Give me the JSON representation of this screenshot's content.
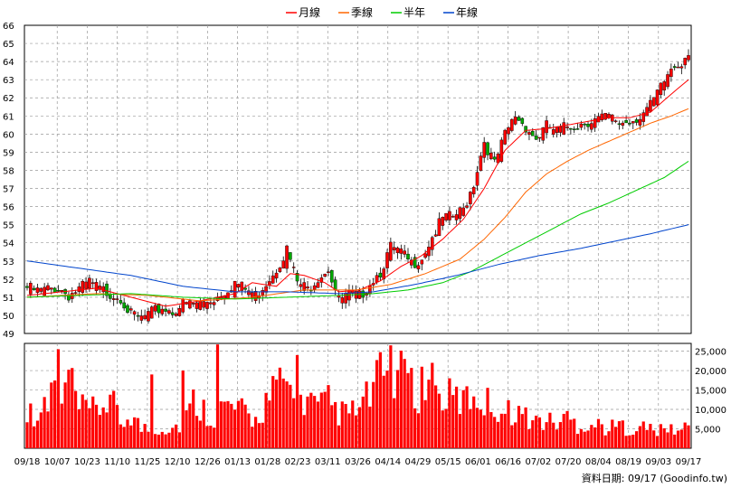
{
  "legend": [
    {
      "label": "月線",
      "color": "#ff0000"
    },
    {
      "label": "季線",
      "color": "#ff6600"
    },
    {
      "label": "半年",
      "color": "#00cc00"
    },
    {
      "label": "年線",
      "color": "#0044cc"
    }
  ],
  "source_text": "資料日期: 09/17  (Goodinfo.tw)",
  "colors": {
    "up": "#ff0000",
    "down": "#00aa00",
    "volume": "#ff0000",
    "grid": "#999999"
  },
  "chart_data": [
    {
      "type": "candlestick",
      "ylim": [
        49,
        66
      ],
      "y_ticks": [
        "49",
        "50",
        "51",
        "52",
        "53",
        "54",
        "55",
        "56",
        "57",
        "58",
        "59",
        "60",
        "61",
        "62",
        "63",
        "64",
        "65",
        "66"
      ],
      "x_ticks": [
        "09/18",
        "10/07",
        "10/23",
        "11/10",
        "11/25",
        "12/10",
        "12/26",
        "01/13",
        "01/28",
        "02/23",
        "03/11",
        "03/26",
        "04/14",
        "04/29",
        "05/15",
        "06/01",
        "06/16",
        "07/02",
        "07/20",
        "08/04",
        "08/19",
        "09/03",
        "09/17"
      ],
      "close_anchors": [
        [
          0,
          51.7
        ],
        [
          3,
          51.5
        ],
        [
          6,
          51.6
        ],
        [
          9,
          51.7
        ],
        [
          12,
          51.3
        ],
        [
          15,
          51.6
        ],
        [
          18,
          52.0
        ],
        [
          21,
          51.6
        ],
        [
          24,
          51.4
        ],
        [
          27,
          51.2
        ],
        [
          30,
          50.2
        ],
        [
          33,
          50.0
        ],
        [
          36,
          50.3
        ],
        [
          39,
          50.6
        ],
        [
          42,
          50.4
        ],
        [
          45,
          50.8
        ],
        [
          48,
          50.8
        ],
        [
          51,
          50.9
        ],
        [
          54,
          51.1
        ],
        [
          57,
          51.5
        ],
        [
          60,
          52.0
        ],
        [
          63,
          51.6
        ],
        [
          66,
          51.3
        ],
        [
          69,
          52.0
        ],
        [
          72,
          52.8
        ],
        [
          75,
          53.8
        ],
        [
          78,
          52.0
        ],
        [
          81,
          51.6
        ],
        [
          84,
          52.3
        ],
        [
          87,
          52.8
        ],
        [
          90,
          51.0
        ],
        [
          93,
          51.3
        ],
        [
          96,
          51.2
        ],
        [
          99,
          52.0
        ],
        [
          102,
          52.6
        ],
        [
          105,
          53.9
        ],
        [
          108,
          53.6
        ],
        [
          111,
          53.0
        ],
        [
          114,
          53.4
        ],
        [
          117,
          54.5
        ],
        [
          120,
          55.5
        ],
        [
          123,
          55.6
        ],
        [
          126,
          56.0
        ],
        [
          129,
          57.5
        ],
        [
          132,
          59.8
        ],
        [
          135,
          58.5
        ],
        [
          138,
          60.1
        ],
        [
          141,
          61.2
        ],
        [
          144,
          60.6
        ],
        [
          147,
          59.9
        ],
        [
          150,
          60.6
        ],
        [
          153,
          60.3
        ],
        [
          156,
          60.6
        ],
        [
          159,
          60.7
        ],
        [
          162,
          60.9
        ],
        [
          165,
          61.0
        ],
        [
          168,
          61.1
        ],
        [
          171,
          60.8
        ],
        [
          174,
          60.9
        ],
        [
          177,
          61.2
        ],
        [
          180,
          61.7
        ],
        [
          183,
          62.7
        ],
        [
          186,
          63.8
        ],
        [
          189,
          64.2
        ],
        [
          191,
          64.8
        ]
      ],
      "ma": [
        {
          "name": "月線",
          "color": "#ff0000",
          "points": [
            [
              0,
              51.1
            ],
            [
              20,
              51.5
            ],
            [
              30,
              51.0
            ],
            [
              40,
              50.5
            ],
            [
              50,
              50.8
            ],
            [
              60,
              51.2
            ],
            [
              65,
              51.8
            ],
            [
              72,
              51.6
            ],
            [
              76,
              52.3
            ],
            [
              80,
              52.2
            ],
            [
              86,
              51.8
            ],
            [
              90,
              51.3
            ],
            [
              96,
              51.4
            ],
            [
              102,
              51.9
            ],
            [
              108,
              52.7
            ],
            [
              114,
              53.3
            ],
            [
              120,
              54.2
            ],
            [
              126,
              55.3
            ],
            [
              132,
              57.0
            ],
            [
              138,
              59.1
            ],
            [
              144,
              60.2
            ],
            [
              150,
              60.3
            ],
            [
              156,
              60.5
            ],
            [
              162,
              60.7
            ],
            [
              168,
              60.9
            ],
            [
              174,
              60.9
            ],
            [
              180,
              61.2
            ],
            [
              186,
              62.2
            ],
            [
              191,
              63.0
            ]
          ]
        },
        {
          "name": "季線",
          "color": "#ff6600",
          "points": [
            [
              0,
              51.0
            ],
            [
              20,
              51.2
            ],
            [
              35,
              51.1
            ],
            [
              50,
              50.8
            ],
            [
              65,
              51.0
            ],
            [
              80,
              51.4
            ],
            [
              95,
              51.4
            ],
            [
              105,
              51.7
            ],
            [
              115,
              52.3
            ],
            [
              125,
              53.1
            ],
            [
              132,
              54.2
            ],
            [
              138,
              55.4
            ],
            [
              144,
              56.8
            ],
            [
              150,
              57.8
            ],
            [
              156,
              58.5
            ],
            [
              162,
              59.1
            ],
            [
              168,
              59.6
            ],
            [
              174,
              60.1
            ],
            [
              180,
              60.6
            ],
            [
              186,
              61.0
            ],
            [
              191,
              61.4
            ]
          ]
        },
        {
          "name": "半年",
          "color": "#00cc00",
          "points": [
            [
              0,
              51.0
            ],
            [
              30,
              51.2
            ],
            [
              45,
              51.0
            ],
            [
              60,
              50.9
            ],
            [
              75,
              51.0
            ],
            [
              90,
              51.1
            ],
            [
              100,
              51.2
            ],
            [
              110,
              51.4
            ],
            [
              120,
              51.8
            ],
            [
              128,
              52.4
            ],
            [
              136,
              53.2
            ],
            [
              144,
              54.0
            ],
            [
              152,
              54.8
            ],
            [
              160,
              55.6
            ],
            [
              168,
              56.2
            ],
            [
              176,
              56.9
            ],
            [
              184,
              57.6
            ],
            [
              191,
              58.5
            ]
          ]
        },
        {
          "name": "年線",
          "color": "#0044cc",
          "points": [
            [
              0,
              53.0
            ],
            [
              15,
              52.6
            ],
            [
              30,
              52.2
            ],
            [
              45,
              51.6
            ],
            [
              60,
              51.3
            ],
            [
              75,
              51.3
            ],
            [
              90,
              51.2
            ],
            [
              100,
              51.3
            ],
            [
              112,
              51.7
            ],
            [
              124,
              52.2
            ],
            [
              136,
              52.8
            ],
            [
              148,
              53.3
            ],
            [
              160,
              53.7
            ],
            [
              170,
              54.1
            ],
            [
              180,
              54.5
            ],
            [
              191,
              55.0
            ]
          ]
        }
      ]
    },
    {
      "type": "bar",
      "ylim": [
        0,
        27000
      ],
      "y_ticks": [
        "5,000",
        "10,000",
        "15,000",
        "20,000",
        "25,000"
      ],
      "volume_anchors": [
        [
          0,
          9000
        ],
        [
          6,
          10000
        ],
        [
          9,
          25500
        ],
        [
          10,
          11000
        ],
        [
          12,
          19000
        ],
        [
          15,
          10000
        ],
        [
          20,
          9500
        ],
        [
          24,
          13000
        ],
        [
          27,
          6000
        ],
        [
          30,
          9000
        ],
        [
          33,
          5000
        ],
        [
          36,
          5200
        ],
        [
          39,
          5000
        ],
        [
          42,
          5500
        ],
        [
          45,
          6000
        ],
        [
          48,
          12000
        ],
        [
          51,
          10000
        ],
        [
          54,
          8000
        ],
        [
          57,
          11000
        ],
        [
          60,
          10000
        ],
        [
          63,
          9000
        ],
        [
          66,
          7000
        ],
        [
          69,
          12000
        ],
        [
          72,
          15000
        ],
        [
          75,
          17000
        ],
        [
          78,
          10000
        ],
        [
          81,
          13000
        ],
        [
          84,
          10000
        ],
        [
          87,
          12000
        ],
        [
          90,
          9000
        ],
        [
          93,
          9000
        ],
        [
          96,
          10000
        ],
        [
          99,
          14000
        ],
        [
          102,
          18000
        ],
        [
          105,
          20000
        ],
        [
          108,
          18000
        ],
        [
          111,
          15000
        ],
        [
          114,
          15000
        ],
        [
          117,
          14000
        ],
        [
          120,
          13000
        ],
        [
          123,
          13000
        ],
        [
          126,
          12000
        ],
        [
          129,
          14000
        ],
        [
          132,
          12000
        ],
        [
          135,
          11000
        ],
        [
          138,
          9000
        ],
        [
          141,
          10000
        ],
        [
          144,
          8000
        ],
        [
          147,
          7000
        ],
        [
          150,
          7000
        ],
        [
          153,
          6500
        ],
        [
          156,
          8000
        ],
        [
          159,
          6000
        ],
        [
          162,
          6000
        ],
        [
          165,
          6000
        ],
        [
          168,
          5000
        ],
        [
          171,
          6000
        ],
        [
          174,
          5000
        ],
        [
          177,
          5500
        ],
        [
          180,
          5000
        ],
        [
          183,
          4500
        ],
        [
          186,
          5000
        ],
        [
          189,
          4500
        ],
        [
          191,
          6000
        ]
      ],
      "volume_spikes": [
        [
          9,
          25500
        ],
        [
          36,
          19000
        ],
        [
          45,
          20000
        ],
        [
          55,
          28000
        ],
        [
          78,
          24000
        ],
        [
          105,
          26500
        ],
        [
          109,
          23000
        ],
        [
          114,
          21000
        ],
        [
          117,
          22000
        ]
      ]
    }
  ]
}
